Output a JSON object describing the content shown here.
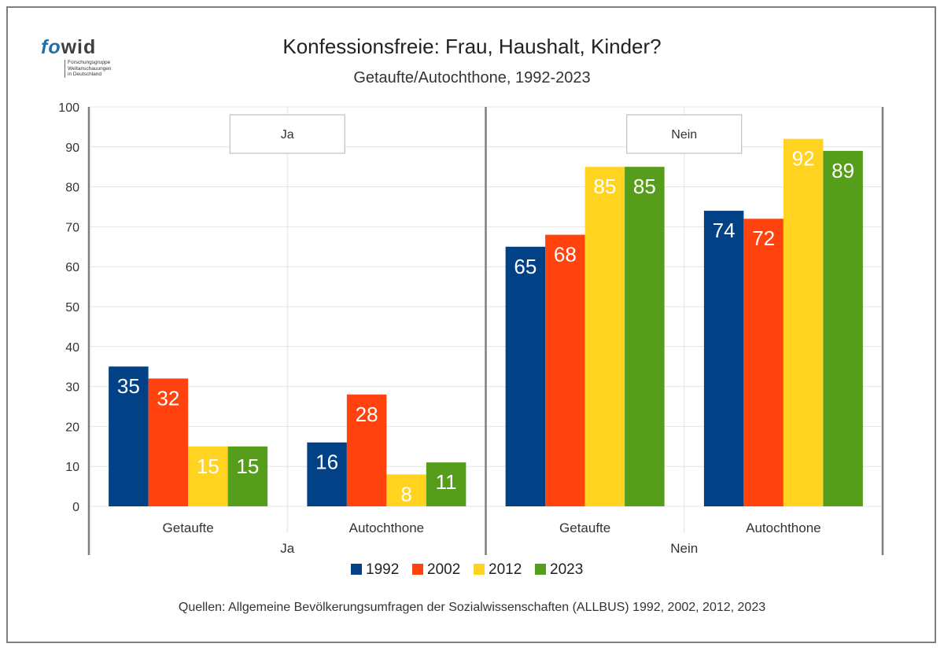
{
  "logo": {
    "part1": "fo",
    "part2": "wid",
    "sub1": "Forschungsgruppe",
    "sub2": "Weltanschauungen",
    "sub3": "in Deutschland"
  },
  "title": "Konfessionsfreie: Frau, Haushalt, Kinder?",
  "subtitle": "Getaufte/Autochthone, 1992-2023",
  "source": "Quellen: Allgemeine Bevölkerungsumfragen der Sozialwissenschaften (ALLBUS) 1992, 2002, 2012, 2023",
  "colors": {
    "1992": "#034187",
    "2002": "#ff420e",
    "2012": "#ffd320",
    "2023": "#579d1c"
  },
  "chart_data": {
    "type": "bar",
    "title": "Konfessionsfreie: Frau, Haushalt, Kinder?",
    "subtitle": "Getaufte/Autochthone, 1992-2023",
    "ylim": [
      0,
      100
    ],
    "yticks": [
      0,
      10,
      20,
      30,
      40,
      50,
      60,
      70,
      80,
      90,
      100
    ],
    "grid": true,
    "legend_position": "bottom",
    "panels": [
      {
        "label": "Ja",
        "categories": [
          "Getaufte",
          "Autochthone"
        ],
        "series": [
          {
            "name": "1992",
            "values": [
              35,
              16
            ]
          },
          {
            "name": "2002",
            "values": [
              32,
              28
            ]
          },
          {
            "name": "2012",
            "values": [
              15,
              8
            ]
          },
          {
            "name": "2023",
            "values": [
              15,
              11
            ]
          }
        ]
      },
      {
        "label": "Nein",
        "categories": [
          "Getaufte",
          "Autochthone"
        ],
        "series": [
          {
            "name": "1992",
            "values": [
              65,
              74
            ]
          },
          {
            "name": "2002",
            "values": [
              68,
              72
            ]
          },
          {
            "name": "2012",
            "values": [
              85,
              92
            ]
          },
          {
            "name": "2023",
            "values": [
              85,
              89
            ]
          }
        ]
      }
    ]
  }
}
